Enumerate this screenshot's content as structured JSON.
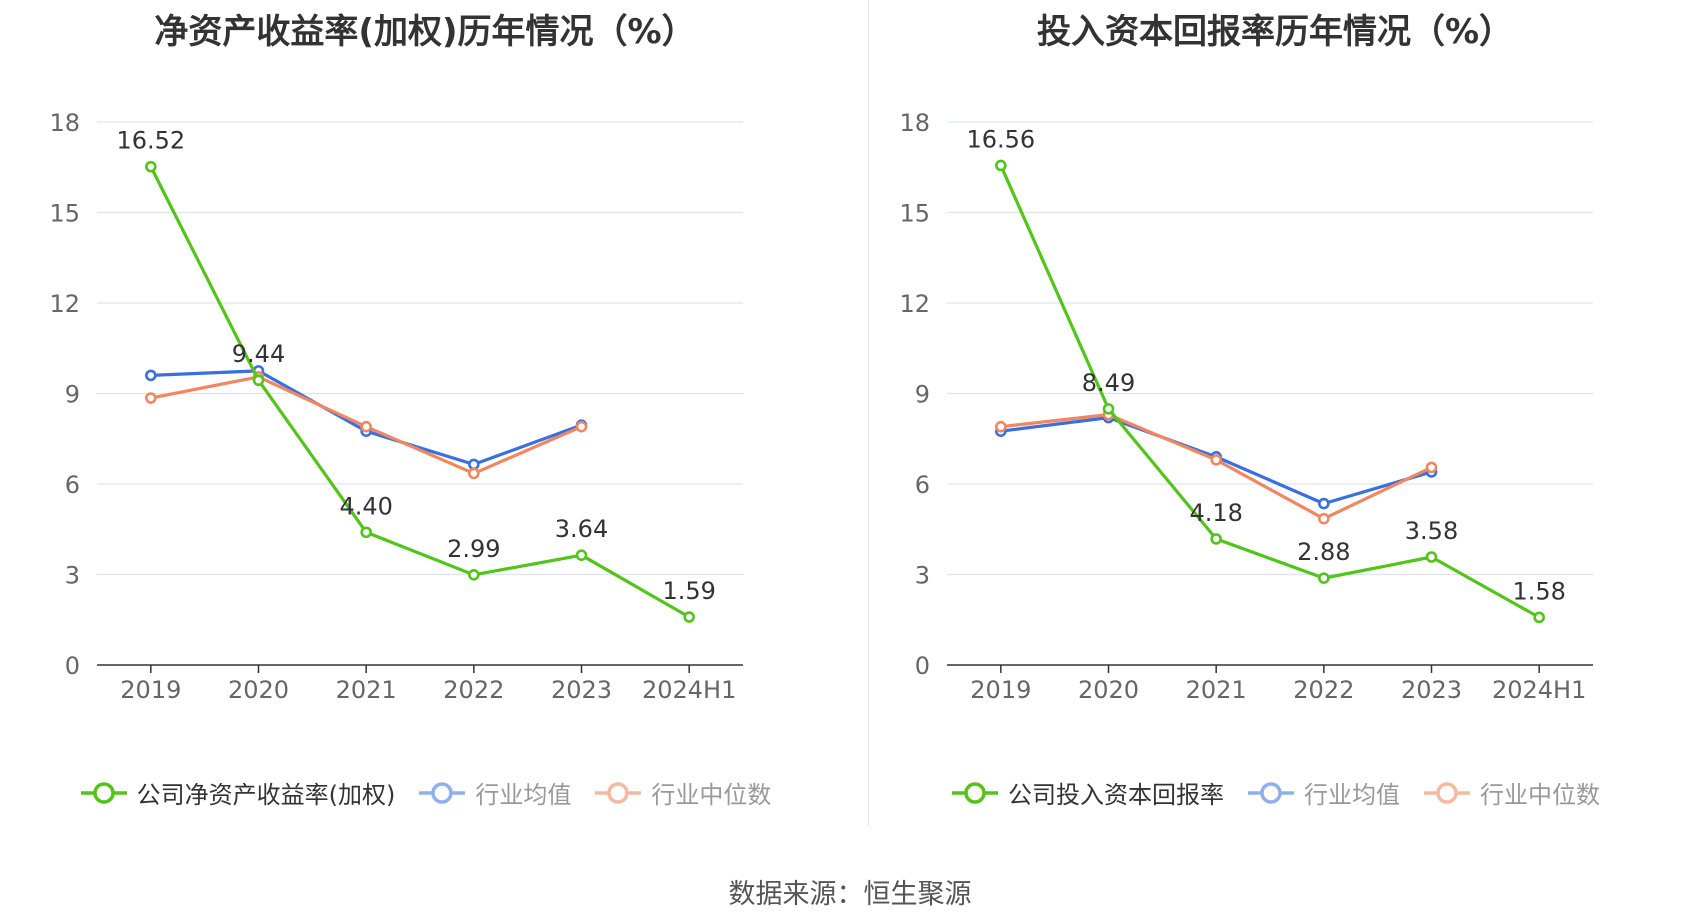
{
  "source_text": "数据来源：恒生聚源",
  "colors": {
    "company": "#52c41a",
    "avg": "#3a6fe0",
    "median": "#f0875f",
    "legend_avg": "#8fb0ec",
    "legend_median": "#f5b8a0",
    "grid": "#dde3f3",
    "axis": "#333333"
  },
  "chart_data": [
    {
      "type": "line",
      "title": "净资产收益率(加权)历年情况（%）",
      "categories": [
        "2019",
        "2020",
        "2021",
        "2022",
        "2023",
        "2024H1"
      ],
      "yticks": [
        "0",
        "3",
        "6",
        "9",
        "12",
        "15",
        "18"
      ],
      "ylim": [
        0,
        18
      ],
      "grid": true,
      "legend_position": "bottom",
      "series": [
        {
          "name": "公司净资产收益率(加权)",
          "key": "company",
          "values": [
            16.52,
            9.44,
            4.4,
            2.99,
            3.64,
            1.59
          ],
          "labels": [
            "16.52",
            "9.44",
            "4.40",
            "2.99",
            "3.64",
            "1.59"
          ]
        },
        {
          "name": "行业均值",
          "key": "avg",
          "values": [
            9.6,
            9.75,
            7.75,
            6.65,
            7.95,
            null
          ]
        },
        {
          "name": "行业中位数",
          "key": "median",
          "values": [
            8.85,
            9.55,
            7.9,
            6.35,
            7.9,
            null
          ]
        }
      ]
    },
    {
      "type": "line",
      "title": "投入资本回报率历年情况（%）",
      "categories": [
        "2019",
        "2020",
        "2021",
        "2022",
        "2023",
        "2024H1"
      ],
      "yticks": [
        "0",
        "3",
        "6",
        "9",
        "12",
        "15",
        "18"
      ],
      "ylim": [
        0,
        18
      ],
      "grid": true,
      "legend_position": "bottom",
      "series": [
        {
          "name": "公司投入资本回报率",
          "key": "company",
          "values": [
            16.56,
            8.49,
            4.18,
            2.88,
            3.58,
            1.58
          ],
          "labels": [
            "16.56",
            "8.49",
            "4.18",
            "2.88",
            "3.58",
            "1.58"
          ]
        },
        {
          "name": "行业均值",
          "key": "avg",
          "values": [
            7.75,
            8.2,
            6.9,
            5.35,
            6.4,
            null
          ]
        },
        {
          "name": "行业中位数",
          "key": "median",
          "values": [
            7.9,
            8.3,
            6.8,
            4.85,
            6.55,
            null
          ]
        }
      ]
    }
  ]
}
